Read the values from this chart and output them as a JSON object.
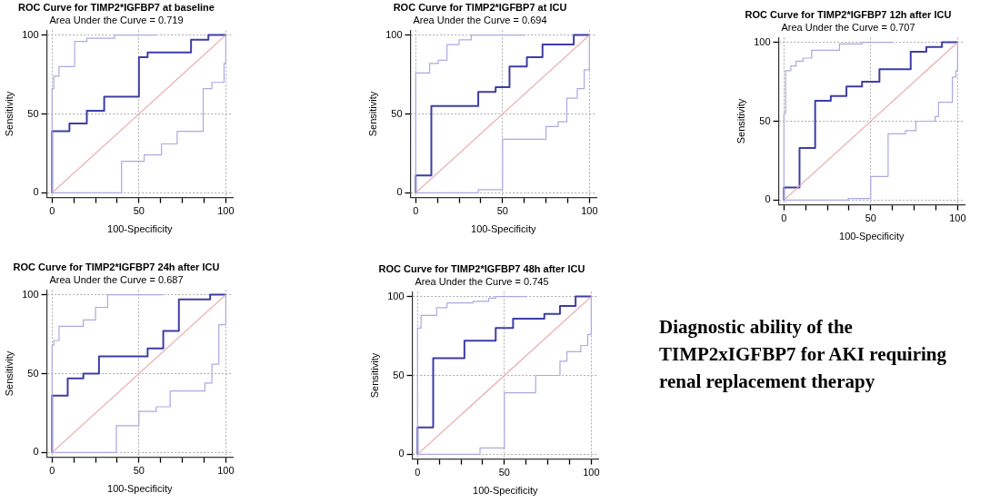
{
  "chart_data": [
    {
      "type": "step",
      "title": "ROC Curve for TIMP2*IGFBP7 at baseline",
      "subtitle": "Area Under the Curve = 0.719",
      "xlabel": "100-Specificity",
      "ylabel": "Sensitivity",
      "xlim": [
        -3,
        104
      ],
      "ylim": [
        -3,
        103
      ],
      "xticks": [
        0,
        {
          "value": 12.5,
          "label": null
        },
        {
          "value": 25,
          "label": null
        },
        {
          "value": 37.5,
          "label": null
        },
        50,
        {
          "value": 62.5,
          "label": null
        },
        {
          "value": 75,
          "label": null
        },
        {
          "value": 87.5,
          "label": null
        },
        100
      ],
      "yticks": [
        0,
        50,
        100
      ],
      "grid": true,
      "series": [
        {
          "color": "#a9a9e2",
          "x": [
            0,
            0,
            1,
            4,
            13,
            20,
            36,
            60
          ],
          "values": [
            0,
            66,
            74,
            80,
            96,
            98,
            100,
            100
          ]
        },
        {
          "color": "#a9a9e2",
          "x": [
            0,
            40,
            53,
            63,
            72,
            87,
            92,
            99,
            100
          ],
          "values": [
            0,
            20,
            24,
            31,
            39,
            66,
            70,
            82,
            100
          ]
        },
        {
          "type": "line",
          "color": "#eba5a5",
          "x": [
            0,
            100
          ],
          "values": [
            0,
            100
          ]
        },
        {
          "color": "#3d3da6",
          "x": [
            0,
            0,
            10,
            20,
            30,
            50,
            55,
            80,
            90,
            100
          ],
          "values": [
            0,
            39,
            44,
            52,
            61,
            86,
            89,
            97,
            100,
            100
          ]
        }
      ]
    },
    {
      "type": "step",
      "title": "ROC Curve for TIMP2*IGFBP7 at ICU",
      "subtitle": "Area Under the Curve = 0.694",
      "xlabel": "100-Specificity",
      "ylabel": "Sensitivity",
      "xlim": [
        -3,
        104
      ],
      "ylim": [
        -3,
        103
      ],
      "xticks": [
        0,
        {
          "value": 12.5,
          "label": null
        },
        {
          "value": 25,
          "label": null
        },
        {
          "value": 37.5,
          "label": null
        },
        50,
        {
          "value": 62.5,
          "label": null
        },
        {
          "value": 75,
          "label": null
        },
        {
          "value": 87.5,
          "label": null
        },
        100
      ],
      "yticks": [
        0,
        50,
        100
      ],
      "grid": true,
      "series": [
        {
          "color": "#a9a9e2",
          "x": [
            0,
            0,
            8,
            13,
            18,
            25,
            32,
            63
          ],
          "values": [
            0,
            76,
            82,
            84,
            94,
            97,
            100,
            100
          ]
        },
        {
          "color": "#a9a9e2",
          "x": [
            0,
            36,
            50,
            75,
            82,
            87,
            93,
            97,
            100
          ],
          "values": [
            0,
            2,
            34,
            42,
            45,
            60,
            66,
            78,
            100
          ]
        },
        {
          "type": "line",
          "color": "#eba5a5",
          "x": [
            0,
            100
          ],
          "values": [
            0,
            100
          ]
        },
        {
          "color": "#3d3da6",
          "x": [
            0,
            0,
            9,
            36,
            46,
            54,
            64,
            73,
            91,
            100
          ],
          "values": [
            0,
            11,
            55,
            64,
            67,
            80,
            86,
            94,
            100,
            100
          ]
        }
      ]
    },
    {
      "type": "step",
      "title": "ROC Curve for TIMP2*IGFBP7 12h after ICU",
      "subtitle": "Area Under the Curve = 0.707",
      "xlabel": "100-Specificity",
      "ylabel": "Sensitivity",
      "xlim": [
        -3,
        104
      ],
      "ylim": [
        -3,
        103
      ],
      "xticks": [
        0,
        {
          "value": 12.5,
          "label": null
        },
        {
          "value": 25,
          "label": null
        },
        {
          "value": 37.5,
          "label": null
        },
        50,
        {
          "value": 62.5,
          "label": null
        },
        {
          "value": 75,
          "label": null
        },
        {
          "value": 87.5,
          "label": null
        },
        100
      ],
      "yticks": [
        0,
        50,
        100
      ],
      "grid": true,
      "series": [
        {
          "color": "#a9a9e2",
          "x": [
            0,
            0,
            1,
            4,
            7,
            11,
            16,
            32,
            45,
            63
          ],
          "values": [
            0,
            55,
            82,
            85,
            88,
            90,
            95,
            99,
            100,
            100
          ]
        },
        {
          "color": "#a9a9e2",
          "x": [
            0,
            37,
            50,
            60,
            70,
            76,
            87,
            89,
            97,
            99,
            100
          ],
          "values": [
            0,
            1,
            15,
            42,
            44,
            50,
            53,
            62,
            78,
            82,
            100
          ]
        },
        {
          "type": "line",
          "color": "#eba5a5",
          "x": [
            0,
            100
          ],
          "values": [
            0,
            100
          ]
        },
        {
          "color": "#3d3da6",
          "x": [
            0,
            0,
            9,
            18,
            27,
            36,
            45,
            55,
            73,
            82,
            91,
            100
          ],
          "values": [
            0,
            8,
            33,
            63,
            66,
            72,
            75,
            83,
            94,
            97,
            100,
            100
          ]
        }
      ]
    },
    {
      "type": "step",
      "title": "ROC Curve for TIMP2*IGFBP7 24h after ICU",
      "subtitle": "Area Under the Curve = 0.687",
      "xlabel": "100-Specificity",
      "ylabel": "Sensitivity",
      "xlim": [
        -3,
        104
      ],
      "ylim": [
        -3,
        103
      ],
      "xticks": [
        0,
        {
          "value": 12.5,
          "label": null
        },
        {
          "value": 25,
          "label": null
        },
        {
          "value": 37.5,
          "label": null
        },
        50,
        {
          "value": 62.5,
          "label": null
        },
        {
          "value": 75,
          "label": null
        },
        {
          "value": 87.5,
          "label": null
        },
        100
      ],
      "yticks": [
        0,
        50,
        100
      ],
      "grid": true,
      "series": [
        {
          "color": "#a9a9e2",
          "x": [
            0,
            0,
            1,
            4,
            18,
            25,
            32,
            64
          ],
          "values": [
            0,
            68,
            71,
            80,
            84,
            92,
            100,
            100
          ]
        },
        {
          "color": "#a9a9e2",
          "x": [
            0,
            37,
            50,
            60,
            68,
            88,
            92,
            96,
            100
          ],
          "values": [
            0,
            17,
            26,
            29,
            39,
            44,
            56,
            81,
            100
          ]
        },
        {
          "type": "line",
          "color": "#eba5a5",
          "x": [
            0,
            100
          ],
          "values": [
            0,
            100
          ]
        },
        {
          "color": "#3d3da6",
          "x": [
            0,
            0,
            9,
            18,
            27,
            55,
            64,
            73,
            91,
            100
          ],
          "values": [
            0,
            36,
            47,
            50,
            61,
            66,
            77,
            97,
            100,
            100
          ]
        }
      ]
    },
    {
      "type": "step",
      "title": "ROC Curve for TIMP2*IGFBP7 48h after ICU",
      "subtitle": "Area Under the Curve = 0.745",
      "xlabel": "100-Specificity",
      "ylabel": "Sensitivity",
      "xlim": [
        -3,
        104
      ],
      "ylim": [
        -3,
        103
      ],
      "xticks": [
        0,
        {
          "value": 12.5,
          "label": null
        },
        {
          "value": 25,
          "label": null
        },
        {
          "value": 37.5,
          "label": null
        },
        50,
        {
          "value": 62.5,
          "label": null
        },
        {
          "value": 75,
          "label": null
        },
        {
          "value": 87.5,
          "label": null
        },
        100
      ],
      "yticks": [
        0,
        50,
        100
      ],
      "grid": true,
      "series": [
        {
          "color": "#a9a9e2",
          "x": [
            0,
            0,
            2,
            11,
            17,
            32,
            41,
            45,
            63
          ],
          "values": [
            0,
            80,
            88,
            93,
            96,
            97,
            99,
            100,
            100
          ]
        },
        {
          "color": "#a9a9e2",
          "x": [
            0,
            36,
            50,
            68,
            82,
            86,
            94,
            98,
            100
          ],
          "values": [
            0,
            4,
            39,
            50,
            59,
            65,
            69,
            76,
            100
          ]
        },
        {
          "type": "line",
          "color": "#eba5a5",
          "x": [
            0,
            100
          ],
          "values": [
            0,
            100
          ]
        },
        {
          "color": "#3d3da6",
          "x": [
            0,
            0,
            9,
            27,
            45,
            55,
            73,
            82,
            91,
            100
          ],
          "values": [
            0,
            17,
            61,
            72,
            80,
            86,
            89,
            94,
            100,
            100
          ]
        }
      ]
    },
    {
      "type": "other",
      "title": "Diagnostic ability of the TIMP2xIGFBP7 for AKI requiring renal replacement therapy"
    }
  ]
}
